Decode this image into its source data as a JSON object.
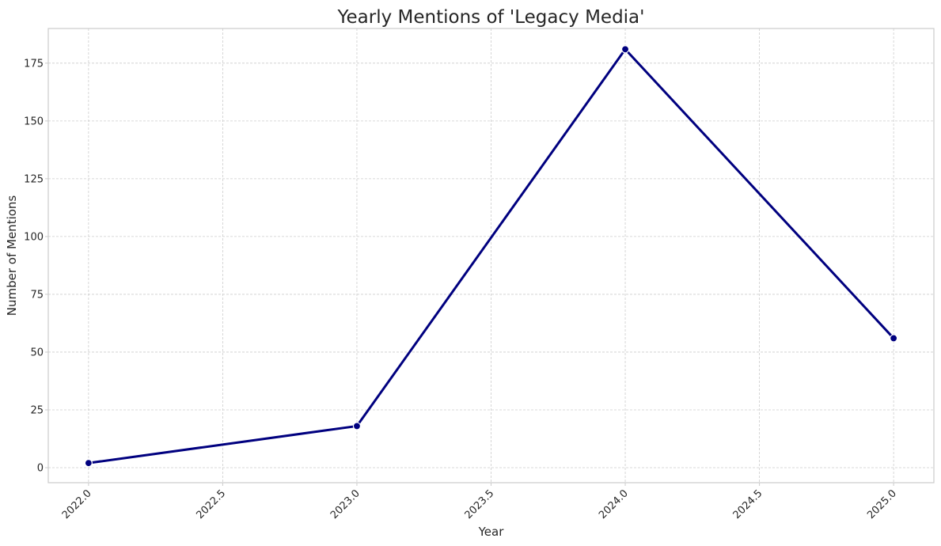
{
  "chart_data": {
    "type": "line",
    "title": "Yearly Mentions of 'Legacy Media'",
    "xlabel": "Year",
    "ylabel": "Number of Mentions",
    "xlim": [
      2021.85,
      2025.15
    ],
    "ylim": [
      -6.5,
      190
    ],
    "x_ticks": [
      2022.0,
      2022.5,
      2023.0,
      2023.5,
      2024.0,
      2024.5,
      2025.0
    ],
    "x_tick_labels": [
      "2022.0",
      "2022.5",
      "2023.0",
      "2023.5",
      "2024.0",
      "2024.5",
      "2025.0"
    ],
    "y_ticks": [
      0,
      25,
      50,
      75,
      100,
      125,
      150,
      175
    ],
    "y_tick_labels": [
      "0",
      "25",
      "50",
      "75",
      "100",
      "125",
      "150",
      "175"
    ],
    "grid": true,
    "legend": "none",
    "series": [
      {
        "color": "#00007f",
        "marker": "circle",
        "x": [
          2022,
          2023,
          2024,
          2025
        ],
        "y": [
          2,
          18,
          181,
          56
        ]
      }
    ]
  }
}
